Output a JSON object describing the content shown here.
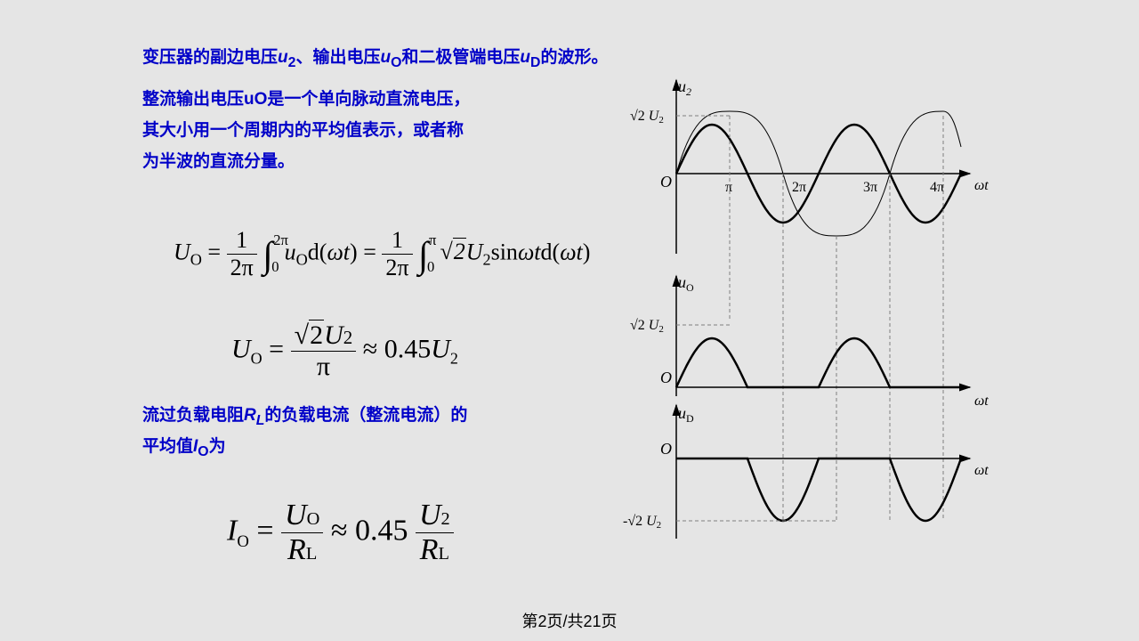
{
  "title_text": "变压器的副边电压u₂、输出电压uO和二极管端电压uD的波形。",
  "para1_line1": "整流输出电压uO是一个单向脉动直流电压，",
  "para1_line2": "其大小用一个周期内的平均值表示，或者称",
  "para1_line3": "为半波的直流分量。",
  "para2_line1": "流过负载电阻RL的负载电流（整流电流）的",
  "para2_line2": "平均值IO为",
  "pager_text": "第2页/共21页",
  "charts": {
    "stroke_color": "#000000",
    "stroke_width": 2.5,
    "dash_color": "#808080",
    "dash_pattern": "4,3",
    "y_labels": {
      "u2": "u₂",
      "uO": "uO",
      "uD": "uD",
      "wt": "ωt",
      "O": "O",
      "sqrt2U2": "√2 U₂",
      "neg_sqrt2U2": "-√2 U₂"
    },
    "x_ticks": [
      "π",
      "2π",
      "3π",
      "4π"
    ],
    "chart1": {
      "type": "sine",
      "amplitude": 55,
      "periods": 2,
      "y_offset": 110,
      "x_start": 60,
      "x_end": 380
    },
    "chart2": {
      "type": "half_wave_positive",
      "amplitude": 55,
      "periods": 2,
      "y_offset": 350,
      "x_start": 60,
      "x_end": 380
    },
    "chart3": {
      "type": "half_wave_negative",
      "amplitude": 70,
      "periods": 2,
      "y_offset": 430,
      "x_start": 60,
      "x_end": 380
    }
  },
  "eq1": {
    "UO": "U",
    "Osub": "O",
    "eq": "=",
    "frac1_num": "1",
    "frac1_den": "2π",
    "int1_top": "2π",
    "int1_bot": "0",
    "u": "u",
    "d": "d(",
    "wt": "ωt",
    "close": ")",
    "int2_top": "π",
    "sqrt2": "2",
    "U2": "U",
    "sub2": "2",
    "sin": "sin",
    "wtd": "ωt"
  },
  "eq2": {
    "approx": "≈ 0.45",
    "U2": "U",
    "sub2": "2",
    "pi": "π"
  },
  "eq3": {
    "I": "I",
    "Osub": "O",
    "RL": "R",
    "Lsub": "L",
    "approx": "≈ 0.45"
  },
  "colors": {
    "background": "#e5e5e5",
    "blue_text": "#0000c8",
    "black": "#000000"
  },
  "fonts": {
    "body_size": 19,
    "eq_large": 30,
    "eq_xlarge": 36,
    "axis_label": 18
  }
}
